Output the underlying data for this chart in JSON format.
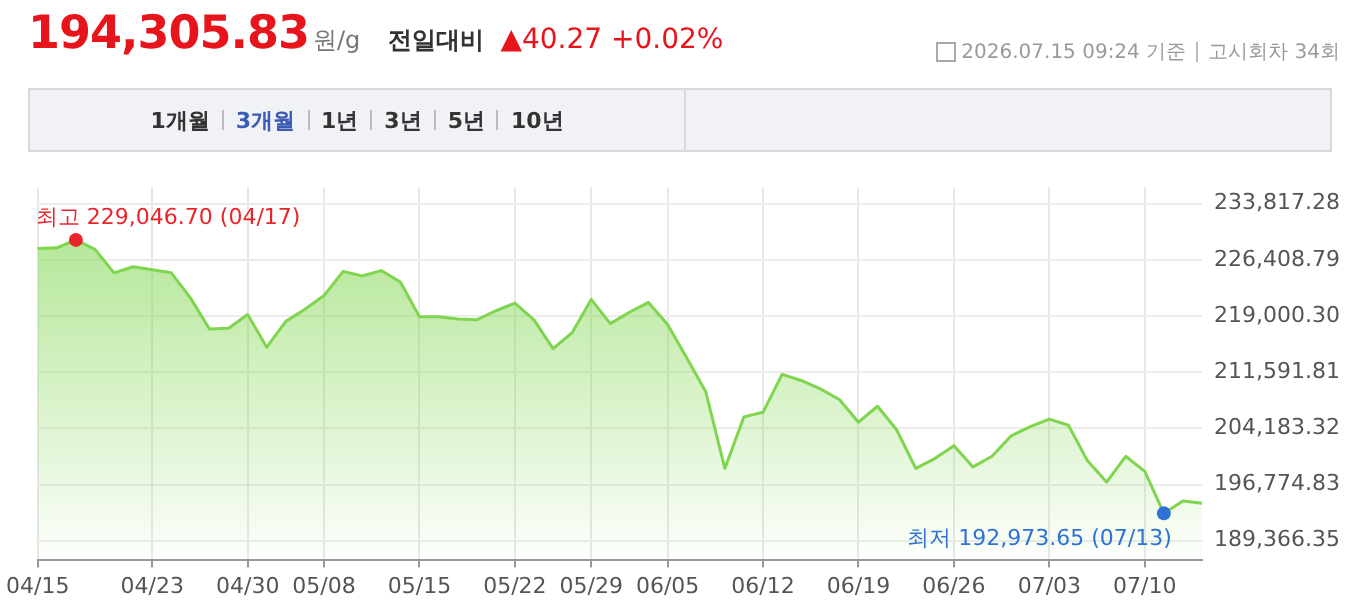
{
  "chart_data": {
    "type": "area",
    "title": "194,305.83",
    "subtitle": "원/g",
    "annotations": [
      "전일대비",
      "▲40.27 +0.02%",
      "2026.07.15 09:24 기준",
      "고시회차 34회",
      "1개월",
      "3개월",
      "1년",
      "3년",
      "5년",
      "10년",
      "최고 229,046.70 (04/17)",
      "최저 192,973.65 (07/13)"
    ],
    "categories": [
      "04/15",
      null,
      null,
      null,
      null,
      null,
      "04/23",
      null,
      null,
      null,
      null,
      "04/30",
      null,
      null,
      null,
      "05/08",
      null,
      null,
      null,
      null,
      "05/15",
      null,
      null,
      null,
      null,
      "05/22",
      null,
      null,
      null,
      "05/29",
      null,
      null,
      null,
      "06/05",
      null,
      null,
      null,
      null,
      "06/12",
      null,
      null,
      null,
      null,
      "06/19",
      null,
      null,
      null,
      null,
      "06/26",
      null,
      null,
      null,
      null,
      "07/03",
      null,
      null,
      null,
      null,
      "07/10",
      null,
      null,
      null
    ],
    "values": [
      227900,
      228000,
      229046.7,
      227800,
      224700,
      225500,
      225100,
      224700,
      221400,
      217300,
      217400,
      219200,
      214900,
      218300,
      219900,
      221700,
      224900,
      224300,
      225000,
      223500,
      218900,
      218900,
      218600,
      218500,
      219700,
      220700,
      218500,
      214700,
      216800,
      221200,
      218000,
      219500,
      220800,
      217900,
      213500,
      209000,
      198900,
      205700,
      206300,
      211300,
      210500,
      209400,
      208000,
      205000,
      207100,
      204000,
      198900,
      200200,
      201900,
      199100,
      200500,
      203200,
      204400,
      205400,
      204600,
      199900,
      197100,
      200500,
      198500,
      192973.65,
      194600,
      194305.83
    ],
    "color": "#7fd64e",
    "ylim": [
      186870,
      236000
    ],
    "yticks": [
      {
        "value": 233817.28,
        "label": "233,817.28"
      },
      {
        "value": 226408.79,
        "label": "226,408.79"
      },
      {
        "value": 219000.3,
        "label": "219,000.30"
      },
      {
        "value": 211591.81,
        "label": "211,591.81"
      },
      {
        "value": 204183.32,
        "label": "204,183.32"
      },
      {
        "value": 196774.83,
        "label": "196,774.83"
      },
      {
        "value": 189366.35,
        "label": "189,366.35"
      }
    ],
    "grid": true,
    "legend": false,
    "marker": "none"
  }
}
